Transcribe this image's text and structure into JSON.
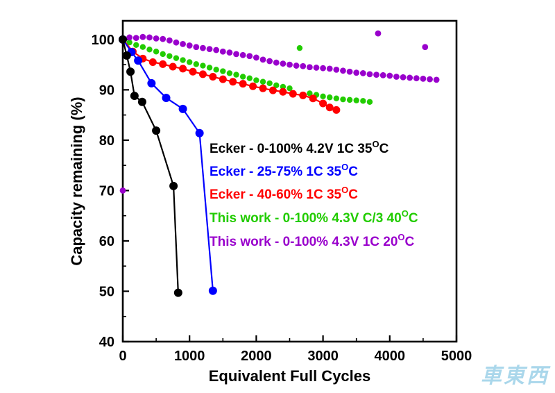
{
  "watermark": {
    "text": "車東西"
  },
  "chart_data": {
    "type": "scatter",
    "title": "",
    "xlabel": "Equivalent Full Cycles",
    "ylabel": "Capacity remaining (%)",
    "xlim": [
      0,
      5000
    ],
    "ylim": [
      40,
      100
    ],
    "x_ticks": [
      0,
      1000,
      2000,
      3000,
      4000,
      5000
    ],
    "y_ticks": [
      40,
      50,
      60,
      70,
      80,
      90,
      100
    ],
    "grid": false,
    "legend_position": "inside-right",
    "series": [
      {
        "id": "ecker-0-100",
        "label_pre": "Ecker - 0-100% 4.2V 1C 35",
        "label_sup": "O",
        "label_post": "C",
        "color": "#000000",
        "line": true,
        "marker_size": 6,
        "z": 5,
        "points": [
          [
            0,
            100
          ],
          [
            60,
            96.8
          ],
          [
            115,
            93.6
          ],
          [
            175,
            88.8
          ],
          [
            290,
            87.6
          ],
          [
            500,
            81.9
          ],
          [
            760,
            70.9
          ],
          [
            830,
            49.7
          ]
        ]
      },
      {
        "id": "ecker-25-75",
        "label_pre": "Ecker - 25-75% 1C 35",
        "label_sup": "O",
        "label_post": "C",
        "color": "#0000ff",
        "line": true,
        "marker_size": 6,
        "z": 4,
        "points": [
          [
            0,
            100
          ],
          [
            130,
            97.5
          ],
          [
            230,
            95.8
          ],
          [
            430,
            91.3
          ],
          [
            650,
            88.4
          ],
          [
            900,
            86.2
          ],
          [
            1150,
            81.4
          ],
          [
            1350,
            50.1
          ]
        ]
      },
      {
        "id": "ecker-40-60",
        "label_pre": "Ecker - 40-60% 1C 35",
        "label_sup": "O",
        "label_post": "C",
        "color": "#ff0000",
        "line": true,
        "marker_size": 5.5,
        "z": 3,
        "points": [
          [
            0,
            100
          ],
          [
            150,
            97.6
          ],
          [
            300,
            96.2
          ],
          [
            450,
            95.5
          ],
          [
            600,
            95.1
          ],
          [
            750,
            94.6
          ],
          [
            900,
            94.2
          ],
          [
            1050,
            93.6
          ],
          [
            1200,
            93.1
          ],
          [
            1350,
            92.6
          ],
          [
            1500,
            92.1
          ],
          [
            1650,
            91.6
          ],
          [
            1800,
            91.2
          ],
          [
            1950,
            90.7
          ],
          [
            2100,
            90.3
          ],
          [
            2250,
            89.9
          ],
          [
            2400,
            89.6
          ],
          [
            2550,
            89.2
          ],
          [
            2700,
            88.9
          ],
          [
            2850,
            88.3
          ],
          [
            3000,
            87.3
          ],
          [
            3100,
            86.5
          ],
          [
            3200,
            86.0
          ]
        ]
      },
      {
        "id": "this-work-c3-40c",
        "label_pre": "This work - 0-100% 4.3V C/3 40",
        "label_sup": "O",
        "label_post": "C",
        "color": "#22cc00",
        "line": false,
        "marker_size": 4.2,
        "z": 1,
        "points": [
          [
            0,
            100
          ],
          [
            100,
            99.4
          ],
          [
            200,
            98.9
          ],
          [
            300,
            98.5
          ],
          [
            400,
            98.0
          ],
          [
            500,
            97.6
          ],
          [
            600,
            97.1
          ],
          [
            700,
            96.7
          ],
          [
            800,
            96.3
          ],
          [
            900,
            95.9
          ],
          [
            1000,
            95.5
          ],
          [
            1100,
            95.1
          ],
          [
            1200,
            94.8
          ],
          [
            1300,
            94.4
          ],
          [
            1400,
            94.0
          ],
          [
            1500,
            93.7
          ],
          [
            1600,
            93.3
          ],
          [
            1700,
            93.0
          ],
          [
            1800,
            92.6
          ],
          [
            1900,
            92.3
          ],
          [
            2000,
            91.9
          ],
          [
            2100,
            91.6
          ],
          [
            2200,
            91.3
          ],
          [
            2300,
            90.9
          ],
          [
            2400,
            90.6
          ],
          [
            2500,
            90.3
          ],
          [
            2650,
            98.3
          ],
          [
            2800,
            89.3
          ],
          [
            2900,
            89.0
          ],
          [
            3000,
            88.7
          ],
          [
            3100,
            88.5
          ],
          [
            3200,
            88.3
          ],
          [
            3300,
            88.1
          ],
          [
            3400,
            88.0
          ],
          [
            3500,
            87.9
          ],
          [
            3600,
            87.8
          ],
          [
            3700,
            87.6
          ]
        ]
      },
      {
        "id": "this-work-1c-20c",
        "label_pre": "This work - 0-100% 4.3V 1C 20",
        "label_sup": "O",
        "label_post": "C",
        "color": "#9900cc",
        "line": false,
        "marker_size": 4.4,
        "z": 2,
        "points": [
          [
            0,
            70
          ],
          [
            0,
            100.2
          ],
          [
            100,
            100.4
          ],
          [
            200,
            100.3
          ],
          [
            300,
            100.5
          ],
          [
            400,
            100.4
          ],
          [
            500,
            100.2
          ],
          [
            600,
            100.1
          ],
          [
            700,
            99.8
          ],
          [
            800,
            99.4
          ],
          [
            900,
            99.1
          ],
          [
            1000,
            98.8
          ],
          [
            1100,
            98.5
          ],
          [
            1200,
            98.3
          ],
          [
            1300,
            98.1
          ],
          [
            1400,
            97.9
          ],
          [
            1500,
            97.6
          ],
          [
            1600,
            97.4
          ],
          [
            1700,
            97.1
          ],
          [
            1800,
            96.9
          ],
          [
            1900,
            96.7
          ],
          [
            2000,
            96.4
          ],
          [
            2100,
            96.0
          ],
          [
            2200,
            95.7
          ],
          [
            2300,
            95.4
          ],
          [
            2400,
            95.2
          ],
          [
            2500,
            95.0
          ],
          [
            2600,
            94.8
          ],
          [
            2700,
            94.7
          ],
          [
            2800,
            94.5
          ],
          [
            2900,
            94.4
          ],
          [
            3000,
            94.3
          ],
          [
            3100,
            94.2
          ],
          [
            3200,
            94.0
          ],
          [
            3300,
            93.8
          ],
          [
            3400,
            93.6
          ],
          [
            3500,
            93.4
          ],
          [
            3600,
            93.3
          ],
          [
            3700,
            93.1
          ],
          [
            3800,
            93.0
          ],
          [
            3825,
            101.2
          ],
          [
            3900,
            92.9
          ],
          [
            4000,
            92.8
          ],
          [
            4100,
            92.6
          ],
          [
            4200,
            92.5
          ],
          [
            4300,
            92.4
          ],
          [
            4400,
            92.3
          ],
          [
            4500,
            92.2
          ],
          [
            4530,
            98.5
          ],
          [
            4600,
            92.1
          ],
          [
            4700,
            92.0
          ]
        ]
      }
    ]
  }
}
